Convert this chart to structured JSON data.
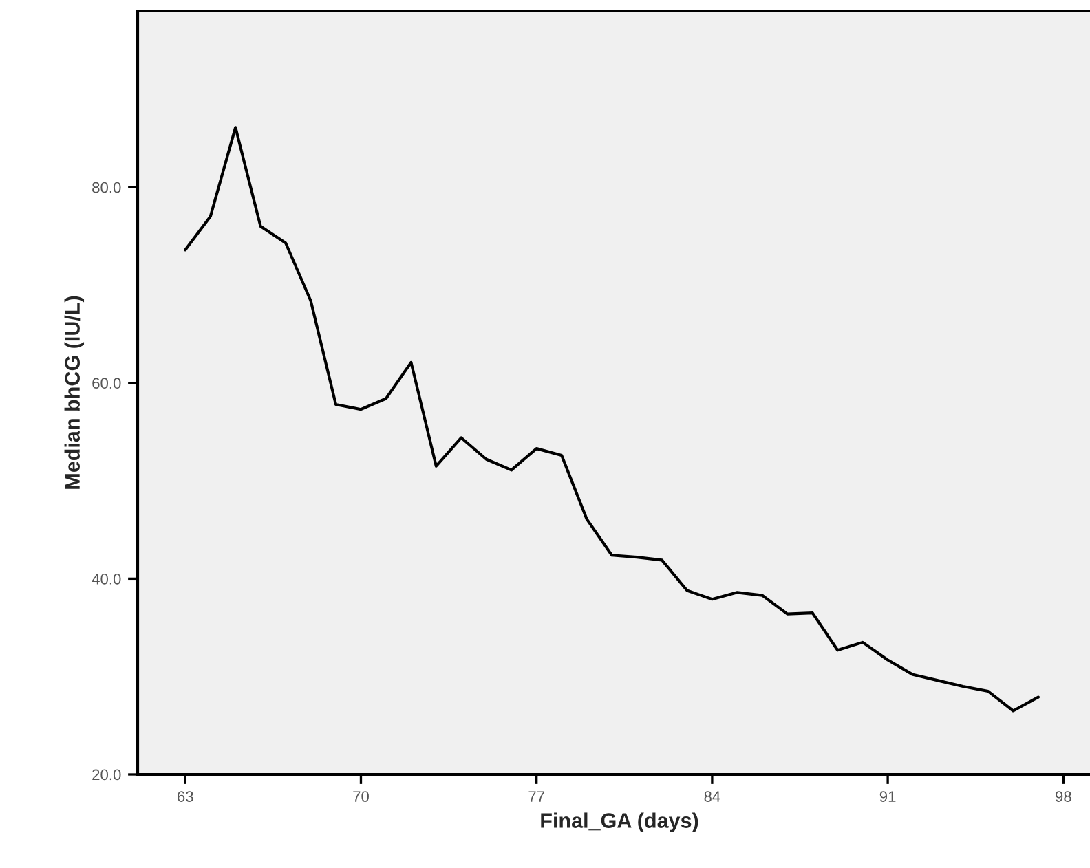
{
  "chart_data": {
    "type": "line",
    "xlabel": "Final_GA (days)",
    "ylabel": "Median bhCG (IU/L)",
    "x": [
      63,
      64,
      65,
      66,
      67,
      68,
      69,
      70,
      71,
      72,
      73,
      74,
      75,
      76,
      77,
      78,
      79,
      80,
      81,
      82,
      83,
      84,
      85,
      86,
      87,
      88,
      89,
      90,
      91,
      92,
      93,
      94,
      95,
      96,
      97
    ],
    "series": [
      {
        "color": "#000000",
        "values": [
          73.6,
          77.0,
          86.1,
          76.0,
          74.3,
          68.4,
          57.8,
          57.3,
          58.4,
          62.1,
          51.5,
          54.4,
          52.2,
          51.1,
          53.3,
          52.6,
          46.1,
          42.4,
          42.2,
          41.9,
          38.8,
          37.9,
          38.6,
          38.3,
          36.4,
          36.5,
          32.7,
          33.5,
          31.7,
          30.2,
          29.6,
          29.0,
          28.5,
          26.5,
          27.9
        ]
      }
    ],
    "xlim": [
      61.1,
      99.5
    ],
    "ylim": [
      20,
      98
    ],
    "xticks": [
      63,
      70,
      77,
      84,
      91,
      98
    ],
    "yticks": [
      {
        "value": 20,
        "label": "20.0"
      },
      {
        "value": 40,
        "label": "40.0"
      },
      {
        "value": 60,
        "label": "60.0"
      },
      {
        "value": 80,
        "label": "80.0"
      }
    ],
    "grid": false,
    "legend": false
  }
}
